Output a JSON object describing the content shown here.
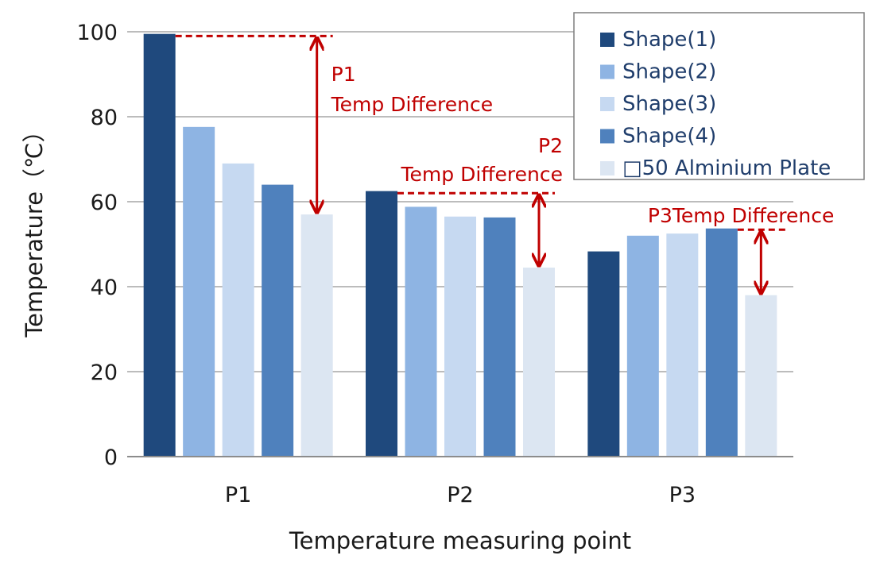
{
  "chart_data": {
    "type": "bar",
    "xlabel": "Temperature measuring point",
    "ylabel": "Temperature（℃）",
    "ylim": [
      0,
      100
    ],
    "yticks": [
      0,
      20,
      40,
      60,
      80,
      100
    ],
    "grid": true,
    "legend_position": "top-right",
    "categories": [
      "P1",
      "P2",
      "P3"
    ],
    "series": [
      {
        "name": "Shape(1)",
        "color": "#1f497d",
        "values": [
          99.5,
          62.5,
          48.3
        ]
      },
      {
        "name": "Shape(2)",
        "color": "#8eb4e3",
        "values": [
          77.6,
          58.8,
          52.0
        ]
      },
      {
        "name": "Shape(3)",
        "color": "#c6d9f1",
        "values": [
          69.0,
          56.5,
          52.5
        ]
      },
      {
        "name": "Shape(4)",
        "color": "#4f81bd",
        "values": [
          64.0,
          56.3,
          53.7
        ]
      },
      {
        "name": "□50 Alminium Plate",
        "color": "#dce6f2",
        "values": [
          57.0,
          44.5,
          38.0
        ]
      }
    ],
    "annotations": [
      {
        "category": "P1",
        "lines": [
          "P1",
          "Temp Difference"
        ],
        "from": 99.0,
        "to": 57.0
      },
      {
        "category": "P2",
        "lines": [
          "P2",
          "Temp Difference"
        ],
        "from": 62.0,
        "to": 44.5
      },
      {
        "category": "P3",
        "lines": [
          "P3Temp Difference"
        ],
        "from": 53.4,
        "to": 38.0
      }
    ],
    "annotation_color": "#c00000"
  }
}
